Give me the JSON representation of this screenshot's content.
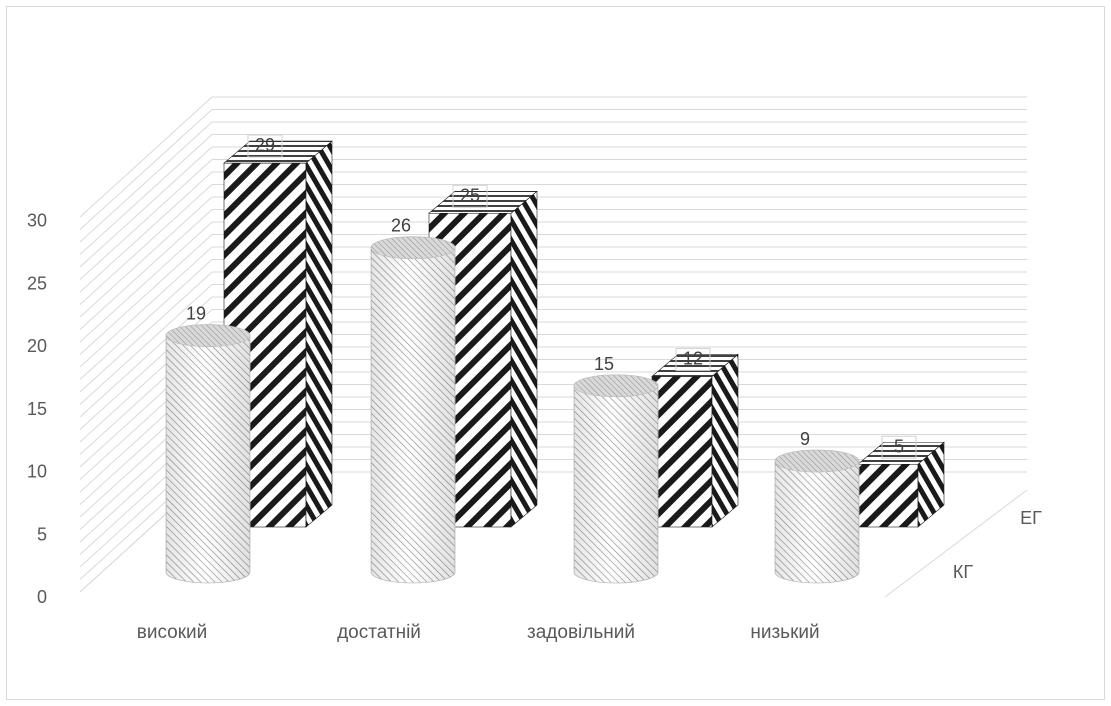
{
  "chart_data": {
    "type": "bar",
    "subtype": "3d-column",
    "categories": [
      "високий",
      "достатній",
      "задовільний",
      "низький"
    ],
    "series": [
      {
        "name": "КГ",
        "values": [
          19,
          26,
          15,
          9
        ],
        "shape": "cylinder",
        "pattern": "light diagonal hatch"
      },
      {
        "name": "ЕГ",
        "values": [
          29,
          25,
          12,
          5
        ],
        "shape": "box",
        "pattern": "bold diagonal stripes"
      }
    ],
    "ylim": [
      0,
      30
    ],
    "yticks": [
      0,
      5,
      10,
      15,
      20,
      25,
      30
    ],
    "grid": true,
    "title": "",
    "xlabel": "",
    "ylabel": "",
    "colors": {
      "grid": "#d9d9d9",
      "axis_text": "#595959",
      "kg_fill": "#ffffff",
      "kg_hatch": "#8c8c8c",
      "eg_stripe": "#1a1a1a",
      "eg_fill": "#ffffff"
    }
  }
}
